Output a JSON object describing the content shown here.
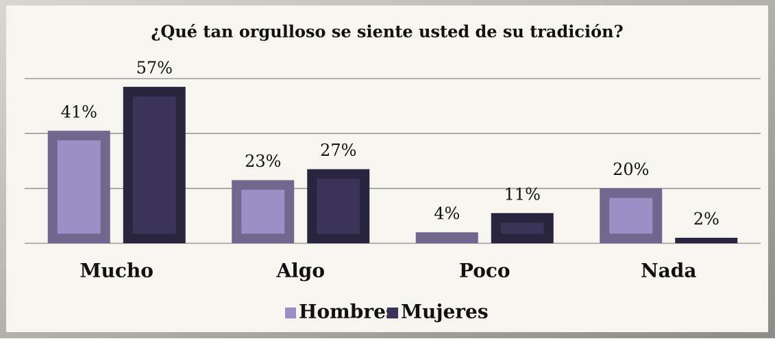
{
  "chart_data": {
    "type": "bar",
    "title": "¿Qué tan orgulloso se siente usted de su tradición?",
    "categories": [
      "Mucho",
      "Algo",
      "Poco",
      "Nada"
    ],
    "series": [
      {
        "name": "Hombres",
        "color": "#9b8fc6",
        "values": [
          41,
          23,
          4,
          20
        ],
        "value_labels": [
          "41%",
          "23%",
          "4%",
          "20%"
        ]
      },
      {
        "name": "Mujeres",
        "color": "#3b3358",
        "values": [
          57,
          27,
          11,
          2
        ],
        "value_labels": [
          "57%",
          "27%",
          "11%",
          "2%"
        ]
      }
    ],
    "ylim": [
      0,
      60
    ],
    "yticks": [
      0,
      20,
      40,
      60
    ],
    "grid": true,
    "legend": "bottom"
  }
}
